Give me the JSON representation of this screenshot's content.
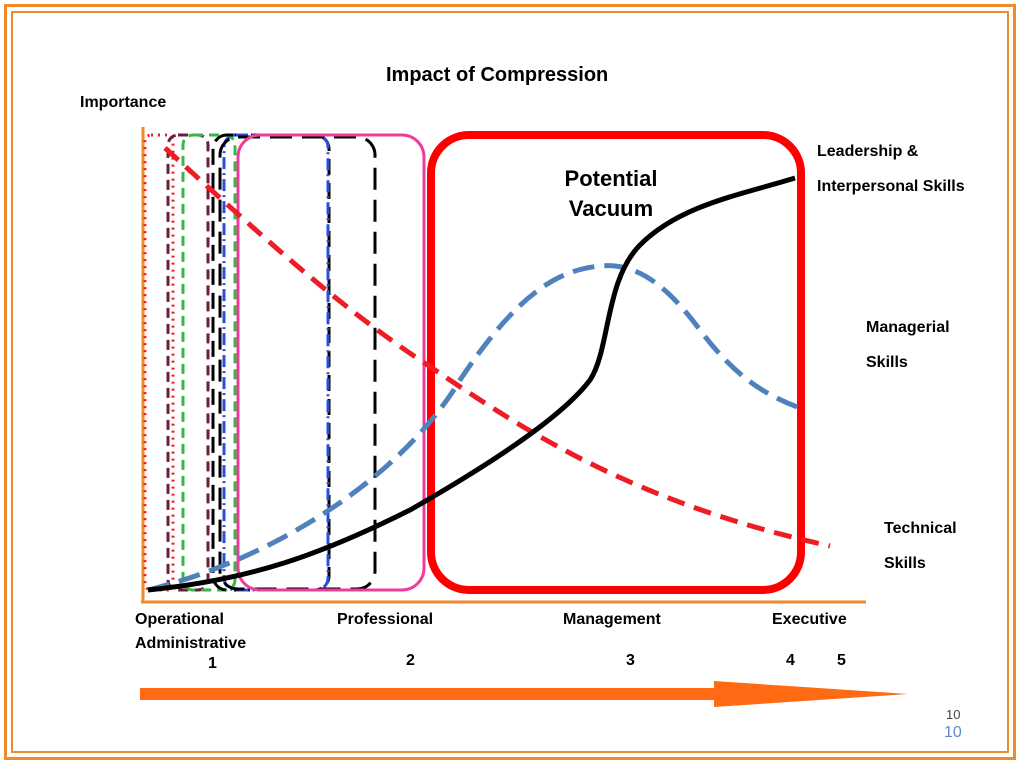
{
  "title": "Impact of Compression",
  "y_axis_label": "Importance",
  "box_label": {
    "line1": "Potential",
    "line2": "Vacuum"
  },
  "curve_labels": {
    "leadership": [
      "Leadership &",
      "Interpersonal Skills"
    ],
    "managerial": [
      "Managerial",
      "Skills"
    ],
    "technical": [
      "Technical",
      "Skills"
    ]
  },
  "levels": {
    "operational": [
      "Operational",
      "Administrative"
    ],
    "professional": "Professional",
    "management": "Management",
    "executive": "Executive"
  },
  "level_numbers": [
    "1",
    "2",
    "3",
    "4",
    "5"
  ],
  "slide_number_small": "10",
  "slide_number_large": "10",
  "colors": {
    "border": "#f08a2c",
    "arrow": "#ff6a13",
    "leadership_curve": "#000000",
    "managerial_curve": "#4f81bd",
    "technical_curve": "#ee1c25",
    "potential_vacuum_box": "#ff0000",
    "professional_box": "#ee3c9a"
  }
}
